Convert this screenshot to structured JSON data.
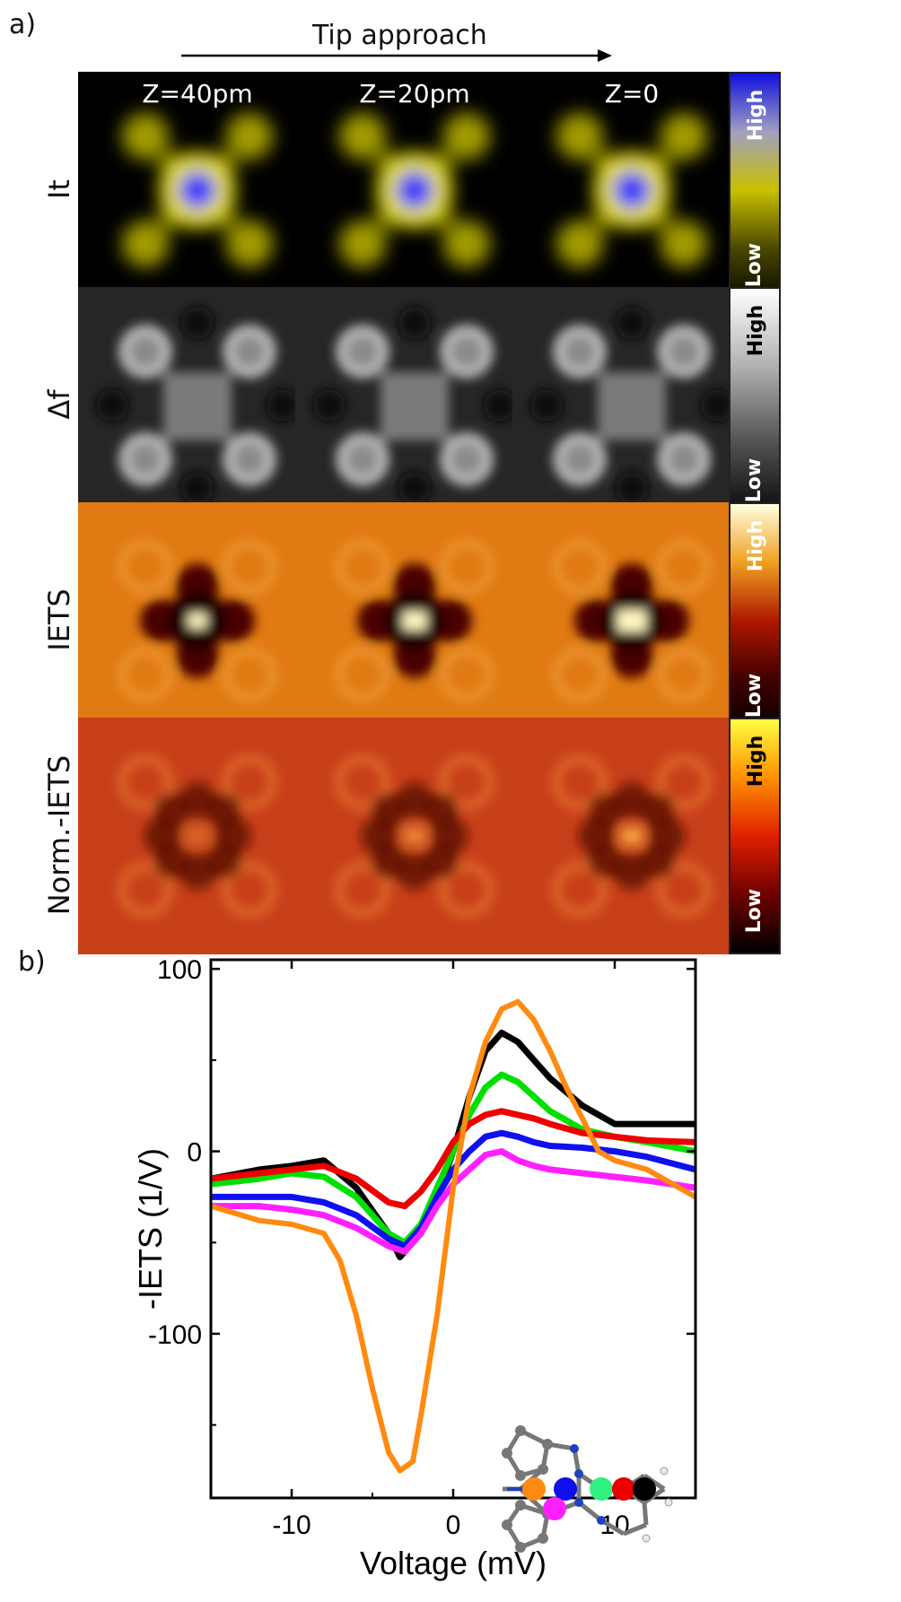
{
  "panel_a_label": "a)",
  "panel_b_label": "b)",
  "arrow_label": "Tip approach",
  "columns": [
    "Z=40pm",
    "Z=20pm",
    "Z=0"
  ],
  "rows": [
    {
      "label": "It",
      "scheme": "it",
      "colors": {
        "bg": "#000000",
        "arms": "#d8d000",
        "center": "#2a2aff"
      }
    },
    {
      "label": "Δf",
      "scheme": "df",
      "colors": {
        "bg": "#262626",
        "arms": "#cfcfcf",
        "center": "#7a7a7a"
      }
    },
    {
      "label": "IETS",
      "scheme": "iets",
      "colors": {
        "bg": "#e07a12",
        "arms": "#4a0500",
        "center": "#fff6c0"
      }
    },
    {
      "label": "Norm.-IETS",
      "scheme": "norm",
      "colors": {
        "bg": "#c8401a",
        "arms": "#5a0a00",
        "center": "#f3a040"
      }
    }
  ],
  "colorbars": [
    {
      "high": "High",
      "low": "Low",
      "gradient": [
        "#1010e0",
        "#a0a0c0",
        "#c8c000",
        "#4a4800",
        "#000000"
      ]
    },
    {
      "high": "High",
      "low": "Low",
      "gradient": [
        "#ffffff",
        "#b0b0b0",
        "#505050",
        "#000000"
      ]
    },
    {
      "high": "High",
      "low": "Low",
      "gradient": [
        "#ffffe0",
        "#f0a020",
        "#b01800",
        "#400000",
        "#000000"
      ]
    },
    {
      "high": "High",
      "low": "Low",
      "gradient": [
        "#ffff40",
        "#ff9000",
        "#e02000",
        "#700000",
        "#000000"
      ]
    }
  ],
  "chart_data": {
    "type": "line",
    "xlabel": "Voltage (mV)",
    "ylabel": "-IETS (1/V)",
    "xlim": [
      -15,
      15
    ],
    "ylim": [
      -190,
      105
    ],
    "xticks": [
      -10,
      0,
      10
    ],
    "xtick_labels": [
      "-10",
      "0",
      "10"
    ],
    "yticks": [
      100,
      0,
      -100
    ],
    "ytick_labels": [
      "100",
      "0",
      "-100"
    ],
    "series": [
      {
        "name": "black",
        "color": "#000000",
        "x": [
          -15,
          -12,
          -10,
          -8,
          -6,
          -4,
          -3.3,
          -2,
          -1,
          0,
          1,
          2,
          3,
          4,
          5,
          6,
          8,
          10,
          12,
          15
        ],
        "y": [
          -15,
          -10,
          -8,
          -5,
          -20,
          -45,
          -58,
          -45,
          -25,
          0,
          30,
          55,
          65,
          60,
          50,
          40,
          25,
          15,
          15,
          15
        ]
      },
      {
        "name": "green",
        "color": "#00e000",
        "x": [
          -15,
          -12,
          -10,
          -8,
          -6,
          -4,
          -3,
          -2,
          -1,
          0,
          1,
          2,
          3,
          4,
          5,
          6,
          8,
          10,
          12,
          15
        ],
        "y": [
          -18,
          -15,
          -12,
          -14,
          -25,
          -45,
          -50,
          -40,
          -20,
          0,
          20,
          35,
          42,
          38,
          30,
          22,
          12,
          8,
          5,
          0
        ]
      },
      {
        "name": "red",
        "color": "#ee0000",
        "x": [
          -15,
          -12,
          -10,
          -8,
          -6,
          -4,
          -3,
          -2,
          -1,
          0,
          1,
          2,
          3,
          4,
          5,
          6,
          8,
          10,
          12,
          15
        ],
        "y": [
          -15,
          -12,
          -10,
          -8,
          -15,
          -28,
          -30,
          -22,
          -10,
          5,
          15,
          20,
          22,
          20,
          18,
          15,
          10,
          8,
          6,
          5
        ]
      },
      {
        "name": "blue",
        "color": "#1010ee",
        "x": [
          -15,
          -12,
          -10,
          -8,
          -6,
          -4,
          -3,
          -2,
          -1,
          0,
          1,
          2,
          3,
          4,
          5,
          6,
          8,
          10,
          12,
          15
        ],
        "y": [
          -25,
          -25,
          -25,
          -28,
          -35,
          -48,
          -52,
          -42,
          -25,
          -10,
          0,
          8,
          10,
          8,
          5,
          3,
          2,
          0,
          -3,
          -10
        ]
      },
      {
        "name": "magenta",
        "color": "#ff20ff",
        "x": [
          -15,
          -12,
          -10,
          -8,
          -6,
          -4,
          -3,
          -2,
          -1,
          0,
          1,
          2,
          3,
          4,
          5,
          6,
          8,
          10,
          12,
          15
        ],
        "y": [
          -30,
          -30,
          -32,
          -35,
          -42,
          -52,
          -55,
          -45,
          -30,
          -18,
          -10,
          -2,
          0,
          -5,
          -8,
          -10,
          -12,
          -14,
          -16,
          -20
        ]
      },
      {
        "name": "orange",
        "color": "#ff8a10",
        "x": [
          -15,
          -12,
          -10,
          -8,
          -7,
          -6,
          -5,
          -4,
          -3.3,
          -2.5,
          -2,
          -1,
          0,
          1,
          2,
          3,
          4,
          5,
          6,
          7,
          8,
          9,
          10,
          12,
          15
        ],
        "y": [
          -30,
          -38,
          -40,
          -45,
          -60,
          -90,
          -130,
          -165,
          -175,
          -170,
          -145,
          -90,
          -20,
          30,
          60,
          78,
          82,
          72,
          55,
          35,
          18,
          0,
          -5,
          -10,
          -25
        ]
      }
    ]
  },
  "inset_molecule": {
    "dots": [
      {
        "name": "orange-site",
        "color": "#ff8a10"
      },
      {
        "name": "blue-site",
        "color": "#1010ee"
      },
      {
        "name": "magenta-site",
        "color": "#ff20ff"
      },
      {
        "name": "green-site",
        "color": "#30f080"
      },
      {
        "name": "red-site",
        "color": "#ee0000"
      },
      {
        "name": "black-site",
        "color": "#000000"
      }
    ]
  }
}
